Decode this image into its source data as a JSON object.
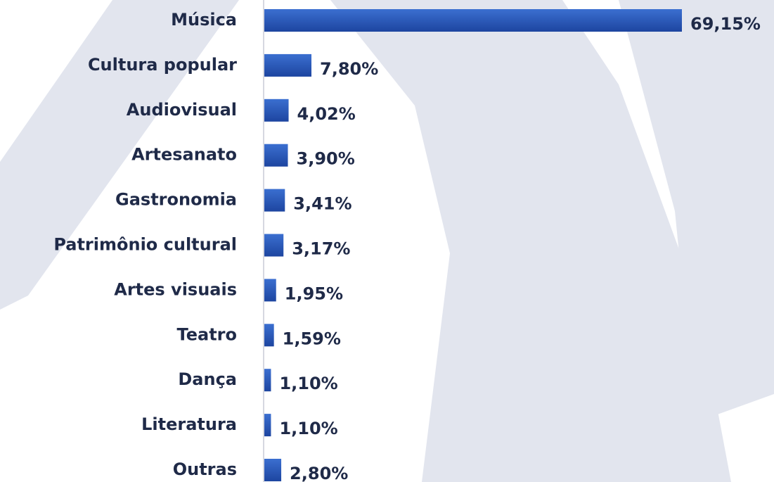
{
  "chart_data": {
    "type": "barh",
    "categories": [
      "Música",
      "Cultura popular",
      "Audiovisual",
      "Artesanato",
      "Gastronomia",
      "Patrimônio cultural",
      "Artes visuais",
      "Teatro",
      "Dança",
      "Literatura",
      "Outras"
    ],
    "values": [
      69.15,
      7.8,
      4.02,
      3.9,
      3.41,
      3.17,
      1.95,
      1.59,
      1.1,
      1.1,
      2.8
    ],
    "value_labels": [
      "69,15%",
      "7,80%",
      "4,02%",
      "3,90%",
      "3,41%",
      "3,17%",
      "1,95%",
      "1,59%",
      "1,10%",
      "1,10%",
      "2,80%"
    ],
    "color": "#2a58b8"
  }
}
